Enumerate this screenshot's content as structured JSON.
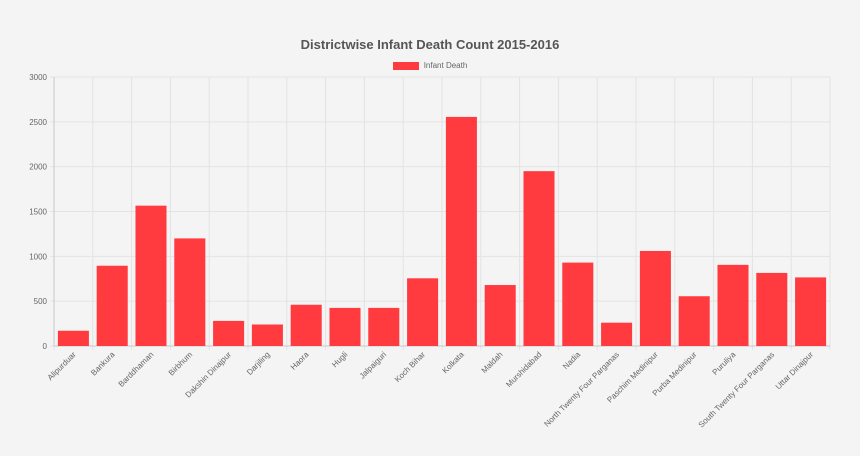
{
  "chart_data": {
    "type": "bar",
    "title": "Districtwise Infant Death Count 2015-2016",
    "categories": [
      "Alipurduar",
      "Bankura",
      "Barddhaman",
      "Birbhum",
      "Dakshin Dinajpur",
      "Darjiling",
      "Haora",
      "Hugli",
      "Jalpaiguri",
      "Koch Bihar",
      "Kolkata",
      "Maldah",
      "Murshidabad",
      "Nadia",
      "North Twenty Four Parganas",
      "Paschim Medinipur",
      "Purba Medinipur",
      "Puruliya",
      "South Twenty Four Parganas",
      "Uttar Dinajpur"
    ],
    "series": [
      {
        "name": "Infant Death",
        "color": "#ff3b3f",
        "values": [
          170,
          895,
          1565,
          1200,
          280,
          240,
          460,
          425,
          425,
          755,
          2555,
          680,
          1950,
          930,
          260,
          1060,
          555,
          905,
          815,
          765
        ]
      }
    ],
    "ylim": [
      0,
      3000
    ],
    "yticks": [
      0,
      500,
      1000,
      1500,
      2000,
      2500,
      3000
    ],
    "grid": true,
    "legend_position": "top-center"
  }
}
